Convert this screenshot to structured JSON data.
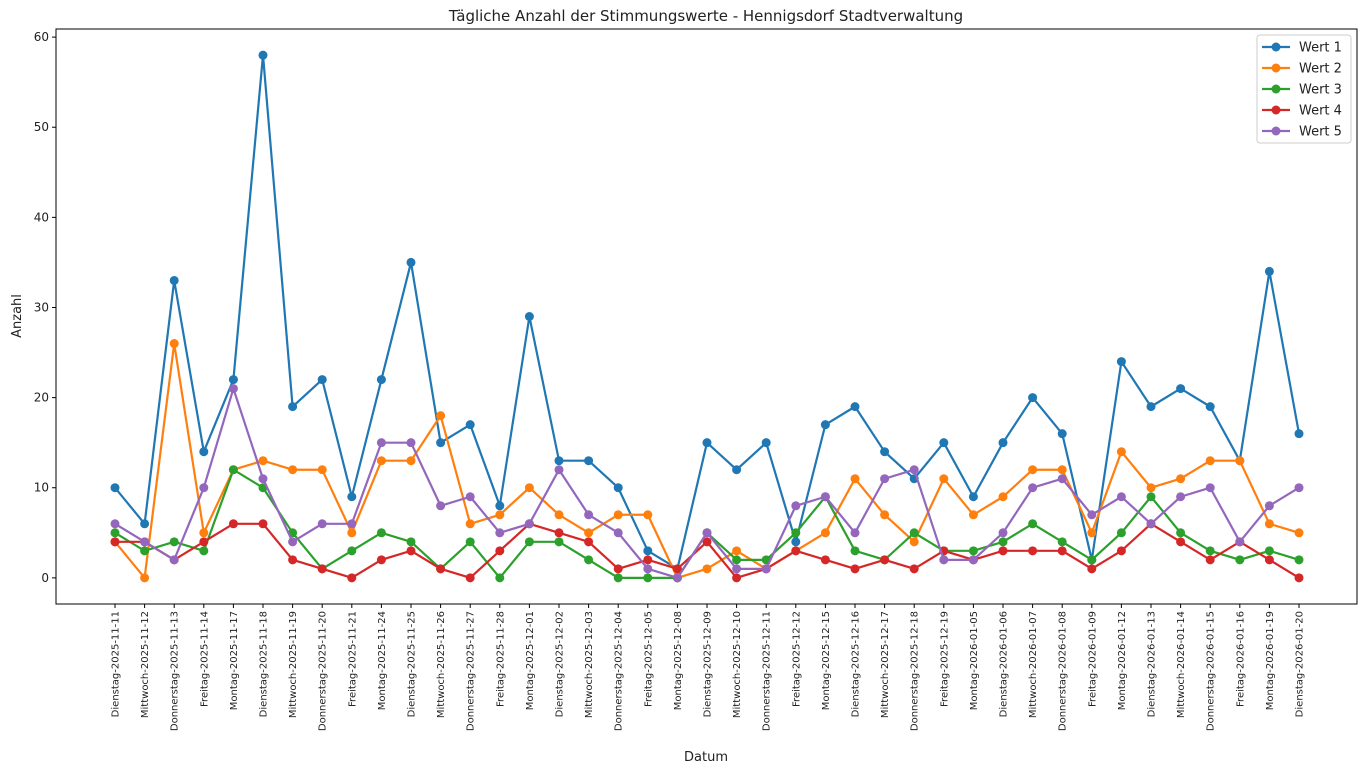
{
  "chart_data": {
    "type": "line",
    "title": "Tägliche Anzahl der Stimmungswerte - Hennigsdorf Stadtverwaltung",
    "xlabel": "Datum",
    "ylabel": "Anzahl",
    "ylim": [
      -2.9,
      60.9
    ],
    "yticks": [
      0,
      10,
      20,
      30,
      40,
      50,
      60
    ],
    "grid": false,
    "legend_position": "top-right",
    "categories": [
      "Dienstag-2025-11-11",
      "Mittwoch-2025-11-12",
      "Donnerstag-2025-11-13",
      "Freitag-2025-11-14",
      "Montag-2025-11-17",
      "Dienstag-2025-11-18",
      "Mittwoch-2025-11-19",
      "Donnerstag-2025-11-20",
      "Freitag-2025-11-21",
      "Montag-2025-11-24",
      "Dienstag-2025-11-25",
      "Mittwoch-2025-11-26",
      "Donnerstag-2025-11-27",
      "Freitag-2025-11-28",
      "Montag-2025-12-01",
      "Dienstag-2025-12-02",
      "Mittwoch-2025-12-03",
      "Donnerstag-2025-12-04",
      "Freitag-2025-12-05",
      "Montag-2025-12-08",
      "Dienstag-2025-12-09",
      "Mittwoch-2025-12-10",
      "Donnerstag-2025-12-11",
      "Freitag-2025-12-12",
      "Montag-2025-12-15",
      "Dienstag-2025-12-16",
      "Mittwoch-2025-12-17",
      "Donnerstag-2025-12-18",
      "Freitag-2025-12-19",
      "Montag-2026-01-05",
      "Dienstag-2026-01-06",
      "Mittwoch-2026-01-07",
      "Donnerstag-2026-01-08",
      "Freitag-2026-01-09",
      "Montag-2026-01-12",
      "Dienstag-2026-01-13",
      "Mittwoch-2026-01-14",
      "Donnerstag-2026-01-15",
      "Freitag-2026-01-16",
      "Montag-2026-01-19",
      "Dienstag-2026-01-20"
    ],
    "series": [
      {
        "name": "Wert 1",
        "color": "#1f77b4",
        "values": [
          10,
          6,
          33,
          14,
          22,
          58,
          19,
          22,
          9,
          22,
          35,
          15,
          17,
          8,
          29,
          13,
          13,
          10,
          3,
          1,
          15,
          12,
          15,
          4,
          17,
          19,
          14,
          11,
          15,
          9,
          15,
          20,
          16,
          2,
          24,
          19,
          21,
          19,
          13,
          34,
          16
        ]
      },
      {
        "name": "Wert 2",
        "color": "#ff7f0e",
        "values": [
          4,
          0,
          26,
          5,
          12,
          13,
          12,
          12,
          5,
          13,
          13,
          18,
          6,
          7,
          10,
          7,
          5,
          7,
          7,
          0,
          1,
          3,
          1,
          3,
          5,
          11,
          7,
          4,
          11,
          7,
          9,
          12,
          12,
          5,
          14,
          10,
          11,
          13,
          13,
          6,
          5
        ]
      },
      {
        "name": "Wert 3",
        "color": "#2ca02c",
        "values": [
          5,
          3,
          4,
          3,
          12,
          10,
          5,
          1,
          3,
          5,
          4,
          1,
          4,
          0,
          4,
          4,
          2,
          0,
          0,
          0,
          5,
          2,
          2,
          5,
          9,
          3,
          2,
          5,
          3,
          3,
          4,
          6,
          4,
          2,
          5,
          9,
          5,
          3,
          2,
          3,
          2
        ]
      },
      {
        "name": "Wert 4",
        "color": "#d62728",
        "values": [
          4,
          4,
          2,
          4,
          6,
          6,
          2,
          1,
          0,
          2,
          3,
          1,
          0,
          3,
          6,
          5,
          4,
          1,
          2,
          1,
          4,
          0,
          1,
          3,
          2,
          1,
          2,
          1,
          3,
          2,
          3,
          3,
          3,
          1,
          3,
          6,
          4,
          2,
          4,
          2,
          0
        ]
      },
      {
        "name": "Wert 5",
        "color": "#9467bd",
        "values": [
          6,
          4,
          2,
          10,
          21,
          11,
          4,
          6,
          6,
          15,
          15,
          8,
          9,
          5,
          6,
          12,
          7,
          5,
          1,
          0,
          5,
          1,
          1,
          8,
          9,
          5,
          11,
          12,
          2,
          2,
          5,
          10,
          11,
          7,
          9,
          6,
          9,
          10,
          4,
          8,
          10
        ]
      }
    ]
  }
}
